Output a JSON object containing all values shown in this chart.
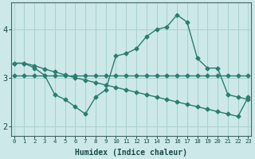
{
  "xlabel": "Humidex (Indice chaleur)",
  "x": [
    0,
    1,
    2,
    3,
    4,
    5,
    6,
    7,
    8,
    9,
    10,
    11,
    12,
    13,
    14,
    15,
    16,
    17,
    18,
    19,
    20,
    21,
    22,
    23
  ],
  "line1": [
    3.3,
    3.3,
    3.2,
    3.05,
    2.65,
    2.55,
    2.4,
    2.25,
    2.6,
    2.75,
    3.45,
    3.5,
    3.6,
    3.85,
    4.0,
    4.05,
    4.3,
    4.15,
    3.4,
    3.2,
    3.2,
    2.65,
    2.6,
    2.55
  ],
  "line2": [
    3.05,
    3.05,
    3.05,
    3.05,
    3.05,
    3.05,
    3.05,
    3.05,
    3.05,
    3.05,
    3.05,
    3.05,
    3.05,
    3.05,
    3.05,
    3.05,
    3.05,
    3.05,
    3.05,
    3.05,
    3.05,
    3.05,
    3.05,
    3.05
  ],
  "line3": [
    3.3,
    3.3,
    3.25,
    3.18,
    3.12,
    3.06,
    3.0,
    2.95,
    2.9,
    2.85,
    2.8,
    2.75,
    2.7,
    2.65,
    2.6,
    2.55,
    2.5,
    2.45,
    2.4,
    2.35,
    2.3,
    2.25,
    2.2,
    2.6
  ],
  "line_color": "#2a7d70",
  "bg_color": "#cce8e8",
  "grid_color": "#aad0d0",
  "ylim": [
    1.8,
    4.55
  ],
  "yticks": [
    2,
    3,
    4
  ],
  "xlim": [
    -0.3,
    23.3
  ]
}
